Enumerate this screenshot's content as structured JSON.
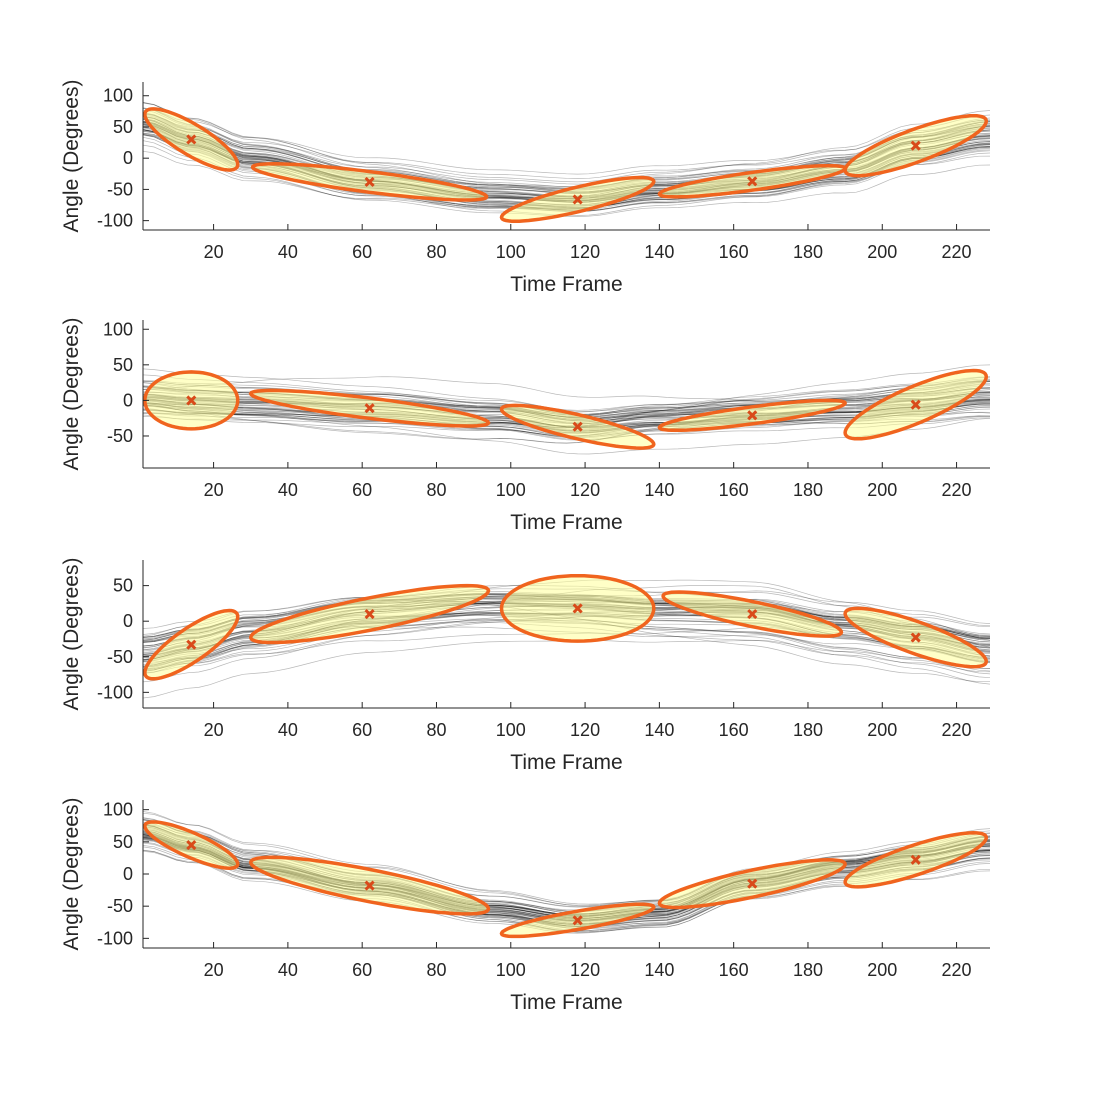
{
  "colors": {
    "background": "#ffffff",
    "traces": "#000000",
    "ellipse_fill": "#ffff99",
    "ellipse_edge": "#f0641e",
    "mean_marker": "#d94a1a",
    "axis": "#262626"
  },
  "chart_data": [
    {
      "type": "line",
      "title": "",
      "xlabel": "Time Frame",
      "ylabel": "Angle (Degrees)",
      "xlim": [
        1,
        229
      ],
      "ylim": [
        -115,
        122
      ],
      "xticks": [
        20,
        40,
        60,
        80,
        100,
        120,
        140,
        160,
        180,
        200,
        220
      ],
      "yticks": [
        -100,
        -50,
        0,
        50,
        100
      ],
      "grid": false,
      "legend": "none",
      "mean_trajectory": {
        "x": [
          1,
          14,
          30,
          62,
          95,
          118,
          140,
          165,
          190,
          209,
          229
        ],
        "y": [
          55,
          30,
          0,
          -38,
          -60,
          -66,
          -50,
          -37,
          -15,
          20,
          40
        ]
      },
      "num_traces": 60,
      "trace_spread": 22,
      "gaussians": [
        {
          "center": [
            14,
            30
          ],
          "x_range": [
            2,
            27
          ],
          "y_range": [
            -20,
            78
          ],
          "slope": -1
        },
        {
          "center": [
            62,
            -38
          ],
          "x_range": [
            30,
            93
          ],
          "y_range": [
            -66,
            -8
          ],
          "slope": -1
        },
        {
          "center": [
            118,
            -66
          ],
          "x_range": [
            97,
            138
          ],
          "y_range": [
            -102,
            -32
          ],
          "slope": 1
        },
        {
          "center": [
            165,
            -37
          ],
          "x_range": [
            140,
            190
          ],
          "y_range": [
            -62,
            -12
          ],
          "slope": 1
        },
        {
          "center": [
            209,
            20
          ],
          "x_range": [
            190,
            228
          ],
          "y_range": [
            -28,
            68
          ],
          "slope": 1
        }
      ]
    },
    {
      "type": "line",
      "title": "",
      "xlabel": "Time Frame",
      "ylabel": "Angle (Degrees)",
      "xlim": [
        1,
        229
      ],
      "ylim": [
        -95,
        113
      ],
      "xticks": [
        20,
        40,
        60,
        80,
        100,
        120,
        140,
        160,
        180,
        200,
        220
      ],
      "yticks": [
        -50,
        0,
        50,
        100
      ],
      "grid": false,
      "legend": "none",
      "mean_trajectory": {
        "x": [
          1,
          14,
          30,
          62,
          95,
          118,
          140,
          165,
          190,
          209,
          229
        ],
        "y": [
          5,
          0,
          -3,
          -11,
          -23,
          -37,
          -28,
          -21,
          -14,
          -6,
          5
        ]
      },
      "num_traces": 60,
      "trace_spread": 20,
      "gaussians": [
        {
          "center": [
            14,
            0
          ],
          "x_range": [
            2,
            27
          ],
          "y_range": [
            -40,
            40
          ],
          "slope": 0
        },
        {
          "center": [
            62,
            -11
          ],
          "x_range": [
            30,
            94
          ],
          "y_range": [
            -36,
            14
          ],
          "slope": -1
        },
        {
          "center": [
            118,
            -37
          ],
          "x_range": [
            97,
            138
          ],
          "y_range": [
            -66,
            -6
          ],
          "slope": -1
        },
        {
          "center": [
            165,
            -21
          ],
          "x_range": [
            140,
            190
          ],
          "y_range": [
            -42,
            0
          ],
          "slope": 1
        },
        {
          "center": [
            209,
            -6
          ],
          "x_range": [
            190,
            228
          ],
          "y_range": [
            -54,
            42
          ],
          "slope": 1
        }
      ]
    },
    {
      "type": "line",
      "title": "",
      "xlabel": "Time Frame",
      "ylabel": "Angle (Degrees)",
      "xlim": [
        1,
        229
      ],
      "ylim": [
        -122,
        86
      ],
      "xticks": [
        20,
        40,
        60,
        80,
        100,
        120,
        140,
        160,
        180,
        200,
        220
      ],
      "yticks": [
        -100,
        -50,
        0,
        50
      ],
      "grid": false,
      "legend": "none",
      "mean_trajectory": {
        "x": [
          1,
          14,
          30,
          62,
          95,
          118,
          140,
          165,
          190,
          209,
          229
        ],
        "y": [
          -45,
          -33,
          -15,
          10,
          20,
          18,
          12,
          10,
          -10,
          -23,
          -40
        ]
      },
      "num_traces": 60,
      "trace_spread": 28,
      "gaussians": [
        {
          "center": [
            14,
            -33
          ],
          "x_range": [
            2,
            27
          ],
          "y_range": [
            -82,
            14
          ],
          "slope": 1
        },
        {
          "center": [
            62,
            10
          ],
          "x_range": [
            30,
            94
          ],
          "y_range": [
            -30,
            50
          ],
          "slope": 1
        },
        {
          "center": [
            118,
            18
          ],
          "x_range": [
            97,
            138
          ],
          "y_range": [
            -28,
            64
          ],
          "slope": 0
        },
        {
          "center": [
            165,
            10
          ],
          "x_range": [
            140,
            188
          ],
          "y_range": [
            -20,
            42
          ],
          "slope": -1
        },
        {
          "center": [
            209,
            -23
          ],
          "x_range": [
            190,
            228
          ],
          "y_range": [
            -66,
            16
          ],
          "slope": -1
        }
      ]
    },
    {
      "type": "line",
      "title": "",
      "xlabel": "Time Frame",
      "ylabel": "Angle (Degrees)",
      "xlim": [
        1,
        229
      ],
      "ylim": [
        -115,
        115
      ],
      "xticks": [
        20,
        40,
        60,
        80,
        100,
        120,
        140,
        160,
        180,
        200,
        220
      ],
      "yticks": [
        -100,
        -50,
        0,
        50,
        100
      ],
      "grid": false,
      "legend": "none",
      "mean_trajectory": {
        "x": [
          1,
          14,
          30,
          62,
          95,
          118,
          140,
          165,
          190,
          209,
          229
        ],
        "y": [
          65,
          45,
          15,
          -18,
          -55,
          -72,
          -62,
          -15,
          8,
          22,
          40
        ]
      },
      "num_traces": 60,
      "trace_spread": 15,
      "gaussians": [
        {
          "center": [
            14,
            45
          ],
          "x_range": [
            2,
            27
          ],
          "y_range": [
            10,
            82
          ],
          "slope": -1
        },
        {
          "center": [
            62,
            -18
          ],
          "x_range": [
            30,
            94
          ],
          "y_range": [
            -62,
            26
          ],
          "slope": -1
        },
        {
          "center": [
            118,
            -72
          ],
          "x_range": [
            97,
            138
          ],
          "y_range": [
            -98,
            -48
          ],
          "slope": 1
        },
        {
          "center": [
            165,
            -15
          ],
          "x_range": [
            140,
            190
          ],
          "y_range": [
            -50,
            24
          ],
          "slope": 1
        },
        {
          "center": [
            209,
            22
          ],
          "x_range": [
            190,
            228
          ],
          "y_range": [
            -18,
            66
          ],
          "slope": 1
        }
      ]
    }
  ]
}
